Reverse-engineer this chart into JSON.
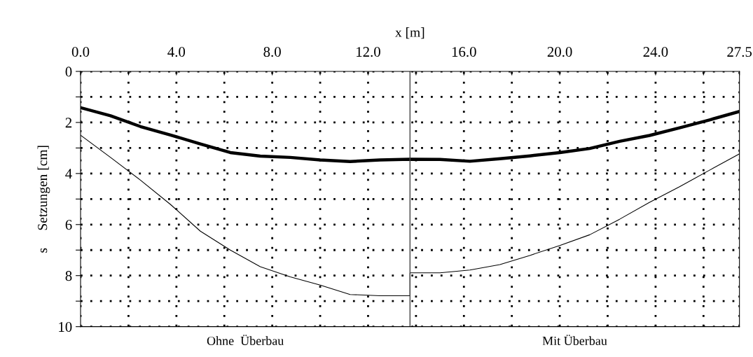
{
  "chart_data": {
    "type": "line",
    "xlabel": "x [m]",
    "ylabel": "s     Setzungen [cm]",
    "xlim": [
      0,
      27.5
    ],
    "ylim": [
      10,
      0
    ],
    "xticks": [
      {
        "value": 0,
        "label": "0.0"
      },
      {
        "value": 2,
        "label": null
      },
      {
        "value": 4,
        "label": "4.0"
      },
      {
        "value": 6,
        "label": null
      },
      {
        "value": 8,
        "label": "8.0"
      },
      {
        "value": 10,
        "label": null
      },
      {
        "value": 12,
        "label": "12.0"
      },
      {
        "value": 14,
        "label": null
      },
      {
        "value": 16,
        "label": "16.0"
      },
      {
        "value": 18,
        "label": null
      },
      {
        "value": 20,
        "label": "20.0"
      },
      {
        "value": 22,
        "label": null
      },
      {
        "value": 24,
        "label": "24.0"
      },
      {
        "value": 26,
        "label": null
      },
      27.5
    ],
    "yticks": [
      0,
      {
        "value": 1,
        "label": null
      },
      2,
      {
        "value": 3,
        "label": null
      },
      4,
      {
        "value": 5,
        "label": null
      },
      6,
      {
        "value": 7,
        "label": null
      },
      8,
      {
        "value": 9,
        "label": null
      },
      10
    ],
    "grid": true,
    "marker": "none",
    "line_style": "solid",
    "series": [
      {
        "color": "#000000",
        "x": [
          0,
          1.25,
          2.5,
          3.75,
          5.0,
          6.25,
          7.5,
          8.75,
          10,
          11.25,
          12.5,
          13.75,
          15,
          16.25,
          17.5,
          18.75,
          20,
          21.25,
          22.5,
          23.75,
          25,
          26.25,
          27.5
        ],
        "values": [
          1.42,
          1.74,
          2.16,
          2.49,
          2.84,
          3.18,
          3.32,
          3.37,
          3.47,
          3.53,
          3.47,
          3.44,
          3.45,
          3.52,
          3.42,
          3.31,
          3.18,
          3.02,
          2.74,
          2.51,
          2.21,
          1.9,
          1.57
        ]
      },
      {
        "color": "#000000",
        "x": [
          0,
          1.25,
          2.5,
          3.75,
          5.0,
          6.25,
          7.5,
          8.75,
          10,
          11.25,
          12.5,
          13.75,
          13.75,
          15,
          16.25,
          17.5,
          18.75,
          20,
          21.25,
          22.5,
          23.75,
          25,
          26.25,
          27.5
        ],
        "values": [
          2.5,
          3.37,
          4.26,
          5.21,
          6.26,
          7.0,
          7.65,
          8.05,
          8.37,
          8.74,
          8.79,
          8.79,
          7.89,
          7.89,
          7.78,
          7.57,
          7.21,
          6.82,
          6.4,
          5.79,
          5.13,
          4.52,
          3.87,
          3.23
        ]
      }
    ],
    "ref_lines": [
      {
        "axis": "x",
        "value": 13.75,
        "color": "#444444",
        "line_style": "solid"
      }
    ],
    "annotations": [
      "Ohne  Überbau",
      "Mit Überbau"
    ]
  }
}
